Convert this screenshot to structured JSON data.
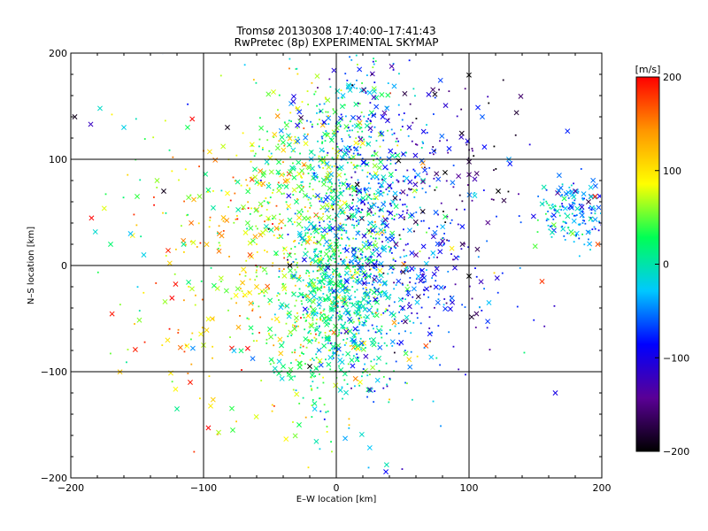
{
  "chart_data": {
    "type": "scatter",
    "title": "Tromsø 20130308 17:40:00–17:41:43",
    "subtitle": "RwPretec (8p) EXPERIMENTAL SKYMAP",
    "xlabel": "E–W location [km]",
    "ylabel": "N–S location [km]",
    "xlim": [
      -200,
      200
    ],
    "ylim": [
      -200,
      200
    ],
    "xticks": [
      "−200",
      "−100",
      "0",
      "100",
      "200"
    ],
    "yticks": [
      "−200",
      "−100",
      "0",
      "100",
      "200"
    ],
    "grid": true,
    "colorbar": {
      "label": "[m/s]",
      "min": -200,
      "max": 200,
      "ticks": [
        "200",
        "100",
        "0",
        "−100",
        "−200"
      ],
      "colormap": [
        "#000000",
        "#5a0096",
        "#0000ff",
        "#00c8ff",
        "#00ff55",
        "#ffff00",
        "#ff9600",
        "#ff0000"
      ]
    },
    "markers": [
      "cross (x)",
      "dot"
    ],
    "points": [
      {
        "x": -197,
        "y": 140,
        "v": -190,
        "m": "x"
      },
      {
        "x": -185,
        "y": 133,
        "v": -120,
        "m": "x"
      },
      {
        "x": -178,
        "y": 148,
        "v": -10,
        "m": "x"
      },
      {
        "x": -160,
        "y": 130,
        "v": -20,
        "m": "x"
      },
      {
        "x": -170,
        "y": 20,
        "v": 20,
        "m": "x"
      },
      {
        "x": -155,
        "y": 30,
        "v": -30,
        "m": "x"
      },
      {
        "x": -150,
        "y": 65,
        "v": 40,
        "m": "x"
      },
      {
        "x": -145,
        "y": 10,
        "v": -20,
        "m": "x"
      },
      {
        "x": -135,
        "y": 80,
        "v": 60,
        "m": "x"
      },
      {
        "x": -130,
        "y": 70,
        "v": -190,
        "m": "x"
      },
      {
        "x": -115,
        "y": 20,
        "v": 10,
        "m": "x"
      },
      {
        "x": -110,
        "y": -110,
        "v": 190,
        "m": "x"
      },
      {
        "x": -120,
        "y": -135,
        "v": 10,
        "m": "x"
      },
      {
        "x": -100,
        "y": -75,
        "v": 70,
        "m": "x"
      },
      {
        "x": -88,
        "y": 30,
        "v": 150,
        "m": "x"
      },
      {
        "x": -85,
        "y": 45,
        "v": 120,
        "m": "x"
      },
      {
        "x": -82,
        "y": 130,
        "v": -190,
        "m": "x"
      },
      {
        "x": -78,
        "y": -155,
        "v": 40,
        "m": "x"
      },
      {
        "x": -70,
        "y": 55,
        "v": 60,
        "m": "x"
      },
      {
        "x": -65,
        "y": 10,
        "v": 170,
        "m": "x"
      },
      {
        "x": -60,
        "y": -20,
        "v": 110,
        "m": "x"
      },
      {
        "x": -55,
        "y": 85,
        "v": 40,
        "m": "x"
      },
      {
        "x": -50,
        "y": -60,
        "v": 30,
        "m": "x"
      },
      {
        "x": -45,
        "y": 35,
        "v": 140,
        "m": "x"
      },
      {
        "x": -40,
        "y": -95,
        "v": 20,
        "m": "x"
      },
      {
        "x": -35,
        "y": 0,
        "v": -200,
        "m": "x"
      },
      {
        "x": -30,
        "y": 60,
        "v": 20,
        "m": "x"
      },
      {
        "x": -28,
        "y": -150,
        "v": 30,
        "m": "x"
      },
      {
        "x": -20,
        "y": -95,
        "v": -200,
        "m": "x"
      },
      {
        "x": -10,
        "y": 100,
        "v": 60,
        "m": "x"
      },
      {
        "x": -5,
        "y": -50,
        "v": 0,
        "m": "x"
      },
      {
        "x": 0,
        "y": 20,
        "v": 30,
        "m": "x"
      },
      {
        "x": 5,
        "y": 160,
        "v": -30,
        "m": "x"
      },
      {
        "x": 10,
        "y": -30,
        "v": -20,
        "m": "x"
      },
      {
        "x": 15,
        "y": 110,
        "v": -60,
        "m": "x"
      },
      {
        "x": 20,
        "y": 60,
        "v": -90,
        "m": "x"
      },
      {
        "x": 28,
        "y": -70,
        "v": 10,
        "m": "x"
      },
      {
        "x": 35,
        "y": 140,
        "v": -90,
        "m": "x"
      },
      {
        "x": 40,
        "y": 75,
        "v": -100,
        "m": "x"
      },
      {
        "x": 45,
        "y": 20,
        "v": -150,
        "m": "x"
      },
      {
        "x": 50,
        "y": -40,
        "v": -100,
        "m": "x"
      },
      {
        "x": 55,
        "y": 130,
        "v": -110,
        "m": "x"
      },
      {
        "x": 60,
        "y": 10,
        "v": -140,
        "m": "x"
      },
      {
        "x": 65,
        "y": -10,
        "v": -100,
        "m": "x"
      },
      {
        "x": 75,
        "y": 50,
        "v": -60,
        "m": "x"
      },
      {
        "x": 85,
        "y": 110,
        "v": -80,
        "m": "x"
      },
      {
        "x": 95,
        "y": 20,
        "v": -170,
        "m": "x"
      },
      {
        "x": 100,
        "y": -10,
        "v": -200,
        "m": "x"
      },
      {
        "x": 110,
        "y": 140,
        "v": -60,
        "m": "x"
      },
      {
        "x": 115,
        "y": -35,
        "v": -30,
        "m": "x"
      },
      {
        "x": 122,
        "y": 70,
        "v": -200,
        "m": "x"
      },
      {
        "x": 130,
        "y": 100,
        "v": -40,
        "m": "x"
      },
      {
        "x": 155,
        "y": -15,
        "v": 180,
        "m": "x"
      },
      {
        "x": 165,
        "y": -120,
        "v": -100,
        "m": "x"
      },
      {
        "x": 178,
        "y": 30,
        "v": 60,
        "m": "x"
      },
      {
        "x": 180,
        "y": 70,
        "v": -140,
        "m": "x"
      },
      {
        "x": 185,
        "y": 55,
        "v": -110,
        "m": "x"
      },
      {
        "x": 190,
        "y": 60,
        "v": -170,
        "m": "x"
      },
      {
        "x": 195,
        "y": 65,
        "v": 190,
        "m": "x"
      },
      {
        "x": 197,
        "y": 20,
        "v": 170,
        "m": "x"
      }
    ],
    "clusters": [
      {
        "cx": -40,
        "cy": -5,
        "sx": 55,
        "sy": 70,
        "n": 520,
        "v": 95,
        "vs": 50
      },
      {
        "cx": -10,
        "cy": 80,
        "sx": 30,
        "sy": 55,
        "n": 420,
        "v": 35,
        "vs": 40
      },
      {
        "cx": -5,
        "cy": -40,
        "sx": 22,
        "sy": 40,
        "n": 500,
        "v": 15,
        "vs": 25
      },
      {
        "cx": 22,
        "cy": 40,
        "sx": 25,
        "sy": 75,
        "n": 600,
        "v": -45,
        "vs": 40
      },
      {
        "cx": 55,
        "cy": 90,
        "sx": 40,
        "sy": 60,
        "n": 260,
        "v": -120,
        "vs": 45
      },
      {
        "cx": 60,
        "cy": -30,
        "sx": 40,
        "sy": 40,
        "n": 160,
        "v": -80,
        "vs": 45
      },
      {
        "cx": 180,
        "cy": 50,
        "sx": 16,
        "sy": 14,
        "n": 170,
        "v": -35,
        "vs": 35
      },
      {
        "cx": -150,
        "cy": 60,
        "sx": 45,
        "sy": 90,
        "n": 60,
        "v": 30,
        "vs": 50
      }
    ]
  }
}
